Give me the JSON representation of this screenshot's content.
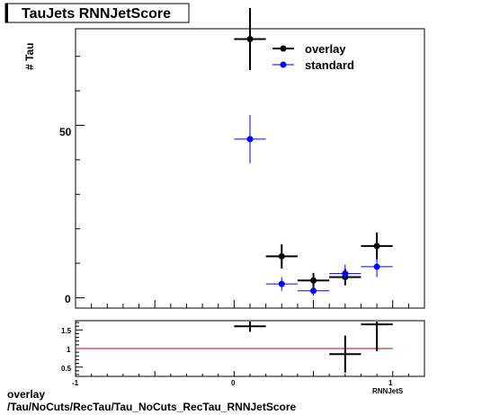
{
  "chart_data": {
    "type": "scatter",
    "title": "TauJets RNNJetScore",
    "ylabel": "# Tau",
    "xlabel": "RNNJetS",
    "xlim": [
      -1,
      1.2
    ],
    "ylim": [
      -3,
      78
    ],
    "ratio_ylim": [
      0.25,
      1.75
    ],
    "x_ticks": [
      "-1",
      "0",
      "1"
    ],
    "y_ticks": [
      "0",
      "50"
    ],
    "ratio_y_ticks": [
      "0.5",
      "1",
      "1.5"
    ],
    "legend_position": "top-right",
    "series": [
      {
        "name": "overlay",
        "color": "#000000",
        "points": [
          {
            "x": 0.1,
            "y": 75,
            "xerr": 0.1,
            "yerr": 9
          },
          {
            "x": 0.3,
            "y": 12,
            "xerr": 0.1,
            "yerr": 3.5
          },
          {
            "x": 0.5,
            "y": 5,
            "xerr": 0.1,
            "yerr": 2.2
          },
          {
            "x": 0.7,
            "y": 6,
            "xerr": 0.1,
            "yerr": 2.4
          },
          {
            "x": 0.9,
            "y": 15,
            "xerr": 0.1,
            "yerr": 3.9
          }
        ]
      },
      {
        "name": "standard",
        "color": "#0000ff",
        "points": [
          {
            "x": 0.1,
            "y": 46,
            "xerr": 0.1,
            "yerr": 7
          },
          {
            "x": 0.3,
            "y": 4,
            "xerr": 0.1,
            "yerr": 2
          },
          {
            "x": 0.5,
            "y": 2,
            "xerr": 0.1,
            "yerr": 1.4
          },
          {
            "x": 0.7,
            "y": 7,
            "xerr": 0.1,
            "yerr": 2.6
          },
          {
            "x": 0.9,
            "y": 9,
            "xerr": 0.1,
            "yerr": 3
          }
        ]
      }
    ],
    "ratio": {
      "reference": 1,
      "reference_color": "#cc0000",
      "points": [
        {
          "x": 0.1,
          "y": 1.6,
          "xerr": 0.1,
          "yerr": 0.15
        },
        {
          "x": 0.7,
          "y": 0.85,
          "xerr": 0.1,
          "yerr": 0.5
        },
        {
          "x": 0.9,
          "y": 1.65,
          "xerr": 0.1,
          "yerr": 0.72
        }
      ]
    }
  },
  "caption": {
    "line1": "overlay",
    "line2": "/Tau/NoCuts/RecTau/Tau_NoCuts_RecTau_RNNJetScore"
  }
}
